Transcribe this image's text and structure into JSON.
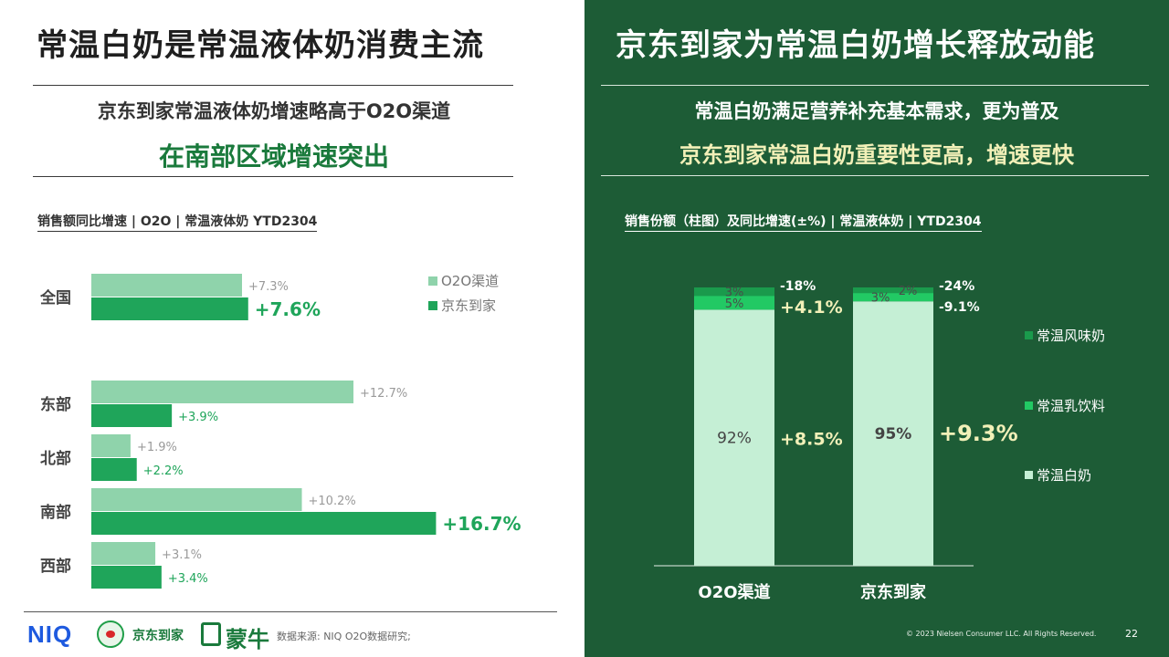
{
  "left": {
    "title": "常温白奶是常温液体奶消费主流",
    "subtitle_line1": "京东到家常温液体奶增速略高于O2O渠道",
    "subtitle_line2": "在南部区域增速突出",
    "chart_title": "销售额同比增速 | O2O | 常温液体奶 YTD2304"
  },
  "right": {
    "title": "京东到家为常温白奶增长释放动能",
    "subtitle_line1": "常温白奶满足营养补充基本需求，更为普及",
    "subtitle_line2": "京东到家常温白奶重要性更高，增速更快",
    "chart_title": "销售份额（柱图）及同比增速(±%) | 常温液体奶 | YTD2304"
  },
  "footer": {
    "niq_logo": "NIQ",
    "jd_label": "京东到家",
    "mengniu_label": "蒙牛",
    "source": "数据来源: NIQ O2O数据研究;",
    "copyright": "© 2023 Nielsen Consumer LLC. All Rights Reserved.",
    "page_number": "22"
  },
  "colors": {
    "o2o_bar": "#8fd3ab",
    "jd_bar": "#1fa55a",
    "dark_green_bg": "#1d5c36",
    "white_milk": "#c5efd5",
    "milk_drink": "#22c964",
    "flavored_milk": "#1a9a4c",
    "highlight_text": "#f2f0b8"
  },
  "chart_data": [
    {
      "type": "bar",
      "orientation": "horizontal",
      "title": "销售额同比增速 | O2O | 常温液体奶 YTD2304",
      "categories": [
        "全国",
        "东部",
        "北部",
        "南部",
        "西部"
      ],
      "series": [
        {
          "name": "O2O渠道",
          "values": [
            7.3,
            12.7,
            1.9,
            10.2,
            3.1
          ],
          "labels": [
            "+7.3%",
            "+12.7%",
            "+1.9%",
            "+10.2%",
            "+3.1%"
          ]
        },
        {
          "name": "京东到家",
          "values": [
            7.6,
            3.9,
            2.2,
            16.7,
            3.4
          ],
          "labels": [
            "+7.6%",
            "+3.9%",
            "+2.2%",
            "+16.7%",
            "+3.4%"
          ]
        }
      ],
      "emphasized_labels": [
        "+7.6%",
        "+16.7%"
      ],
      "legend_position": "top-right"
    },
    {
      "type": "bar",
      "stacked": true,
      "title": "销售份额（柱图）及同比增速(±%) | 常温液体奶 | YTD2304",
      "categories": [
        "O2O渠道",
        "京东到家"
      ],
      "series": [
        {
          "name": "常温白奶",
          "values": [
            92,
            95
          ],
          "labels": [
            "92%",
            "95%"
          ],
          "growth": [
            "+8.5%",
            "+9.3%"
          ]
        },
        {
          "name": "常温乳饮料",
          "values": [
            5,
            3
          ],
          "labels": [
            "5%",
            "3%"
          ],
          "growth": [
            "+4.1%",
            "-9.1%"
          ]
        },
        {
          "name": "常温风味奶",
          "values": [
            3,
            2
          ],
          "labels": [
            "3%",
            "2%"
          ],
          "growth": [
            "-18%",
            "-24%"
          ]
        }
      ],
      "legend_position": "right",
      "ylim": [
        0,
        100
      ]
    }
  ]
}
